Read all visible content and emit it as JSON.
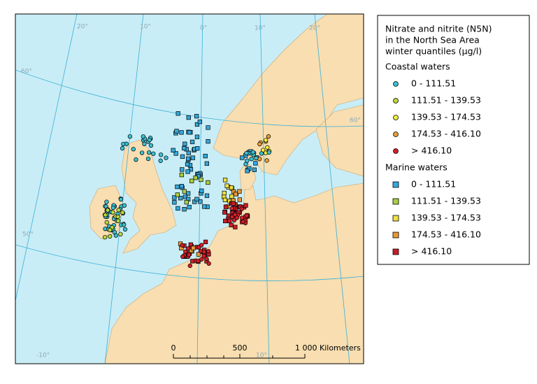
{
  "map": {
    "graticule_labels": [
      "20°",
      "10°",
      "0°",
      "10°",
      "20°",
      "60°",
      "60°",
      "50°",
      "-10°",
      "10°"
    ],
    "scale_bar": {
      "labels": [
        "0",
        "500",
        "1 000 Kilometers"
      ]
    }
  },
  "legend": {
    "title": [
      "Nitrate and nitrite (N5N)",
      "in the North Sea Area",
      "winter quantiles  (µg/l)"
    ],
    "sections": [
      {
        "heading": "Coastal waters",
        "items": [
          {
            "label": "0 - 111.51",
            "color": "#3cc0d2"
          },
          {
            "label": "111.51 - 139.53",
            "color": "#b9d83c"
          },
          {
            "label": "139.53 - 174.53",
            "color": "#f2f03c"
          },
          {
            "label": "174.53 - 416.10",
            "color": "#e8a03a"
          },
          {
            "label": "> 416.10",
            "color": "#d2202a"
          }
        ]
      },
      {
        "heading": "Marine waters",
        "items": [
          {
            "label": "0 - 111.51",
            "color": "#34a8dc"
          },
          {
            "label": "111.51 - 139.53",
            "color": "#a8d040"
          },
          {
            "label": "139.53 - 174.53",
            "color": "#f0e040"
          },
          {
            "label": "174.53 - 416.10",
            "color": "#e89a38"
          },
          {
            "label": "> 416.10",
            "color": "#c81e28"
          }
        ]
      }
    ]
  }
}
